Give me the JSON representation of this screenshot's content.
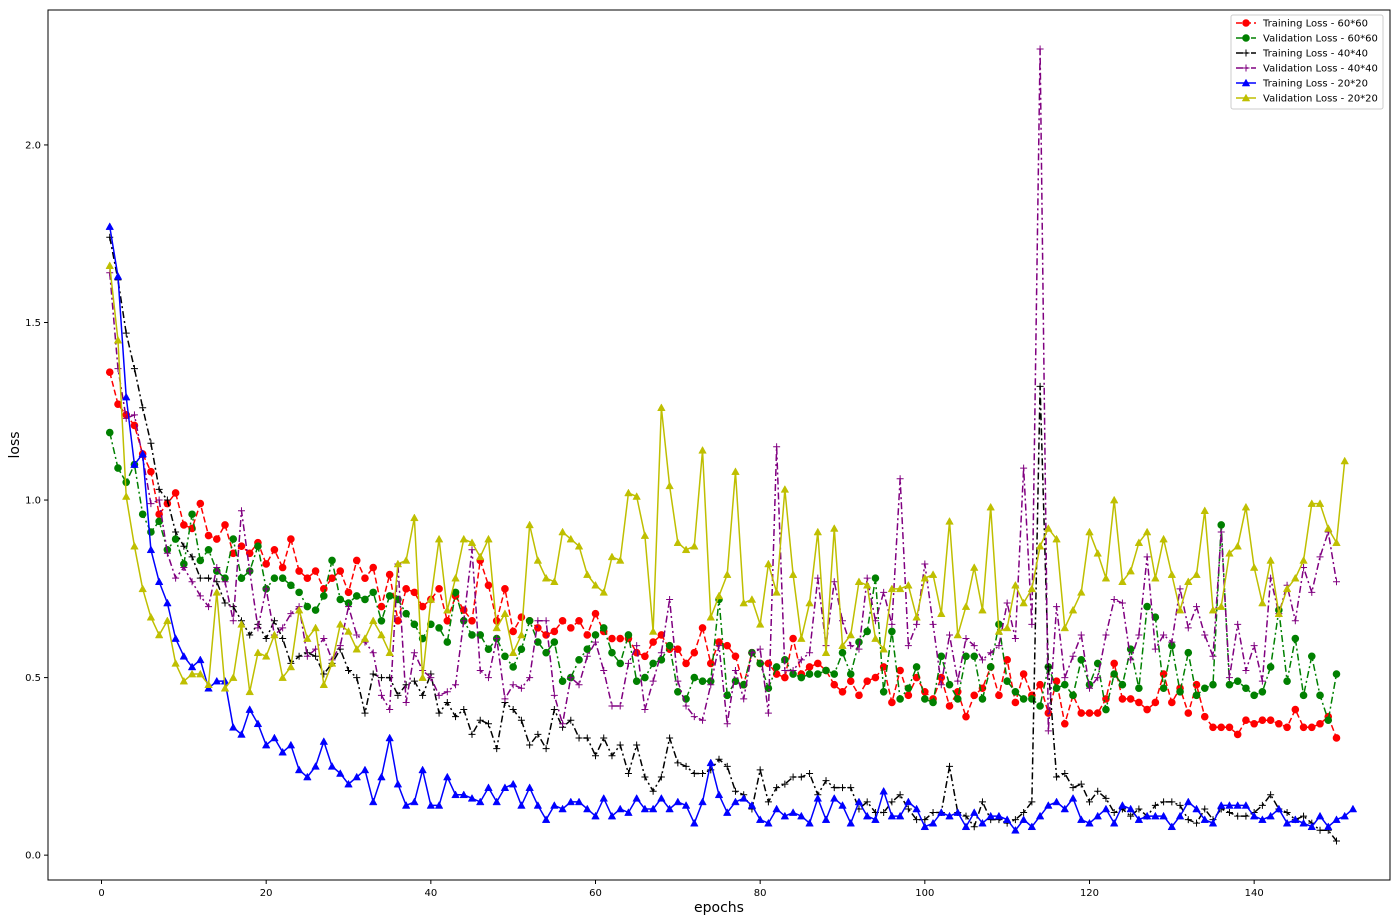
{
  "chart_data": {
    "type": "line",
    "title": "",
    "xlabel": "epochs",
    "ylabel": "loss",
    "xlim": [
      -6.5,
      156.5
    ],
    "ylim": [
      -0.07,
      2.38
    ],
    "x_ticks": [
      0,
      20,
      40,
      60,
      80,
      100,
      120,
      140
    ],
    "y_ticks": [
      0.0,
      0.5,
      1.0,
      1.5,
      2.0
    ],
    "y_tick_labels": [
      "0.0",
      "0.5",
      "1.0",
      "1.5",
      "2.0"
    ],
    "grid": false,
    "legend_position": "top-right",
    "x_start": 1,
    "series": [
      {
        "name": "Training Loss - 60*60",
        "color": "#ff0000",
        "linestyle": "dashed",
        "marker": "circle",
        "values": [
          1.36,
          1.27,
          1.24,
          1.21,
          1.13,
          1.08,
          0.96,
          0.99,
          1.02,
          0.93,
          0.92,
          0.99,
          0.9,
          0.89,
          0.93,
          0.85,
          0.87,
          0.85,
          0.88,
          0.82,
          0.86,
          0.81,
          0.89,
          0.8,
          0.78,
          0.8,
          0.75,
          0.78,
          0.8,
          0.74,
          0.83,
          0.78,
          0.81,
          0.7,
          0.79,
          0.66,
          0.75,
          0.74,
          0.7,
          0.72,
          0.75,
          0.66,
          0.73,
          0.69,
          0.66,
          0.83,
          0.76,
          0.66,
          0.75,
          0.63,
          0.67,
          0.66,
          0.64,
          0.62,
          0.63,
          0.66,
          0.64,
          0.66,
          0.62,
          0.68,
          0.63,
          0.61,
          0.61,
          0.61,
          0.57,
          0.56,
          0.6,
          0.62,
          0.58,
          0.58,
          0.54,
          0.57,
          0.64,
          0.54,
          0.6,
          0.59,
          0.56,
          0.48,
          0.57,
          0.54,
          0.54,
          0.51,
          0.5,
          0.61,
          0.51,
          0.53,
          0.54,
          0.52,
          0.48,
          0.46,
          0.49,
          0.45,
          0.49,
          0.5,
          0.53,
          0.43,
          0.52,
          0.45,
          0.5,
          0.46,
          0.44,
          0.5,
          0.42,
          0.46,
          0.39,
          0.45,
          0.47,
          0.53,
          0.45,
          0.55,
          0.43,
          0.51,
          0.45,
          0.48,
          0.4,
          0.49,
          0.37,
          0.45,
          0.4,
          0.4,
          0.4,
          0.44,
          0.54,
          0.44,
          0.44,
          0.43,
          0.41,
          0.43,
          0.51,
          0.43,
          0.47,
          0.4,
          0.48,
          0.39,
          0.36,
          0.36,
          0.36,
          0.34,
          0.38,
          0.37,
          0.38,
          0.38,
          0.37,
          0.36,
          0.41,
          0.36,
          0.36,
          0.37,
          0.39,
          0.33
        ]
      },
      {
        "name": "Validation Loss - 60*60",
        "color": "#008000",
        "linestyle": "dashdot",
        "marker": "circle",
        "values": [
          1.19,
          1.09,
          1.05,
          1.1,
          0.96,
          0.91,
          0.94,
          0.86,
          0.89,
          0.82,
          0.96,
          0.83,
          0.86,
          0.8,
          0.78,
          0.89,
          0.78,
          0.8,
          0.87,
          0.75,
          0.78,
          0.78,
          0.76,
          0.74,
          0.7,
          0.69,
          0.73,
          0.83,
          0.72,
          0.71,
          0.73,
          0.72,
          0.74,
          0.66,
          0.73,
          0.72,
          0.68,
          0.65,
          0.61,
          0.65,
          0.64,
          0.6,
          0.74,
          0.66,
          0.62,
          0.62,
          0.58,
          0.61,
          0.56,
          0.53,
          0.58,
          0.66,
          0.6,
          0.57,
          0.6,
          0.49,
          0.5,
          0.55,
          0.58,
          0.62,
          0.64,
          0.57,
          0.54,
          0.62,
          0.49,
          0.5,
          0.54,
          0.55,
          0.59,
          0.46,
          0.44,
          0.5,
          0.49,
          0.49,
          0.72,
          0.45,
          0.49,
          0.48,
          0.57,
          0.54,
          0.47,
          0.53,
          0.55,
          0.51,
          0.5,
          0.51,
          0.51,
          0.52,
          0.51,
          0.57,
          0.51,
          0.6,
          0.63,
          0.78,
          0.46,
          0.63,
          0.44,
          0.47,
          0.53,
          0.44,
          0.43,
          0.56,
          0.48,
          0.44,
          0.56,
          0.56,
          0.44,
          0.53,
          0.65,
          0.49,
          0.46,
          0.44,
          0.44,
          0.42,
          0.53,
          0.47,
          0.48,
          0.45,
          0.55,
          0.48,
          0.54,
          0.41,
          0.51,
          0.48,
          0.58,
          0.47,
          0.7,
          0.67,
          0.47,
          0.59,
          0.46,
          0.57,
          0.45,
          0.47,
          0.48,
          0.93,
          0.48,
          0.49,
          0.47,
          0.45,
          0.46,
          0.53,
          0.69,
          0.49,
          0.61,
          0.45,
          0.56,
          0.45,
          0.38,
          0.51
        ]
      },
      {
        "name": "Training Loss - 40*40",
        "color": "#000000",
        "linestyle": "dashdot",
        "marker": "plus",
        "values": [
          1.74,
          1.62,
          1.47,
          1.37,
          1.26,
          1.16,
          1.03,
          1.0,
          0.91,
          0.87,
          0.84,
          0.78,
          0.78,
          0.77,
          0.71,
          0.7,
          0.66,
          0.62,
          0.65,
          0.61,
          0.66,
          0.61,
          0.54,
          0.56,
          0.57,
          0.56,
          0.51,
          0.54,
          0.58,
          0.52,
          0.5,
          0.4,
          0.51,
          0.5,
          0.5,
          0.45,
          0.48,
          0.49,
          0.45,
          0.51,
          0.4,
          0.43,
          0.39,
          0.41,
          0.34,
          0.38,
          0.37,
          0.3,
          0.43,
          0.41,
          0.38,
          0.31,
          0.34,
          0.3,
          0.41,
          0.36,
          0.38,
          0.33,
          0.33,
          0.28,
          0.33,
          0.28,
          0.31,
          0.23,
          0.31,
          0.22,
          0.18,
          0.22,
          0.33,
          0.26,
          0.25,
          0.23,
          0.23,
          0.24,
          0.27,
          0.25,
          0.18,
          0.17,
          0.13,
          0.24,
          0.15,
          0.19,
          0.2,
          0.22,
          0.22,
          0.23,
          0.17,
          0.21,
          0.19,
          0.19,
          0.19,
          0.13,
          0.15,
          0.12,
          0.12,
          0.15,
          0.17,
          0.13,
          0.1,
          0.1,
          0.12,
          0.12,
          0.25,
          0.12,
          0.11,
          0.08,
          0.15,
          0.1,
          0.1,
          0.09,
          0.1,
          0.12,
          0.15,
          1.32,
          0.53,
          0.22,
          0.23,
          0.19,
          0.2,
          0.15,
          0.18,
          0.16,
          0.12,
          0.13,
          0.11,
          0.13,
          0.11,
          0.14,
          0.15,
          0.15,
          0.14,
          0.1,
          0.09,
          0.13,
          0.1,
          0.13,
          0.12,
          0.11,
          0.11,
          0.12,
          0.14,
          0.17,
          0.13,
          0.12,
          0.1,
          0.11,
          0.09,
          0.07,
          0.07,
          0.04
        ]
      },
      {
        "name": "Validation Loss - 40*40",
        "color": "#800080",
        "linestyle": "dashdot",
        "marker": "plus",
        "values": [
          1.64,
          1.37,
          1.23,
          1.24,
          1.12,
          0.99,
          1.0,
          0.85,
          0.78,
          0.81,
          0.77,
          0.73,
          0.7,
          0.81,
          0.77,
          0.66,
          0.97,
          0.8,
          0.64,
          0.75,
          0.62,
          0.64,
          0.68,
          0.7,
          0.56,
          0.58,
          0.61,
          0.55,
          0.59,
          0.7,
          0.62,
          0.6,
          0.57,
          0.45,
          0.41,
          0.82,
          0.43,
          0.57,
          0.52,
          0.5,
          0.45,
          0.46,
          0.48,
          0.66,
          0.86,
          0.52,
          0.5,
          0.61,
          0.44,
          0.48,
          0.47,
          0.5,
          0.66,
          0.66,
          0.45,
          0.37,
          0.5,
          0.48,
          0.56,
          0.6,
          0.52,
          0.42,
          0.42,
          0.54,
          0.59,
          0.41,
          0.49,
          0.57,
          0.72,
          0.49,
          0.42,
          0.39,
          0.38,
          0.48,
          0.59,
          0.37,
          0.52,
          0.44,
          0.57,
          0.58,
          0.4,
          1.15,
          0.52,
          0.52,
          0.55,
          0.57,
          0.78,
          0.59,
          0.77,
          0.66,
          0.59,
          0.58,
          0.78,
          0.66,
          0.74,
          0.65,
          1.06,
          0.59,
          0.65,
          0.82,
          0.65,
          0.48,
          0.62,
          0.49,
          0.61,
          0.59,
          0.55,
          0.57,
          0.59,
          0.71,
          0.61,
          1.09,
          0.65,
          2.27,
          0.35,
          0.7,
          0.5,
          0.56,
          0.62,
          0.47,
          0.5,
          0.62,
          0.72,
          0.71,
          0.55,
          0.62,
          0.84,
          0.58,
          0.62,
          0.6,
          0.75,
          0.64,
          0.7,
          0.62,
          0.56,
          0.91,
          0.5,
          0.65,
          0.52,
          0.59,
          0.49,
          0.78,
          0.68,
          0.76,
          0.66,
          0.81,
          0.74,
          0.84,
          0.91,
          0.77
        ]
      },
      {
        "name": "Training Loss - 20*20",
        "color": "#0000ff",
        "linestyle": "solid",
        "marker": "triangle",
        "values": [
          1.77,
          1.63,
          1.29,
          1.1,
          1.13,
          0.86,
          0.77,
          0.71,
          0.61,
          0.56,
          0.53,
          0.55,
          0.47,
          0.49,
          0.49,
          0.36,
          0.34,
          0.41,
          0.37,
          0.31,
          0.33,
          0.29,
          0.31,
          0.24,
          0.22,
          0.25,
          0.32,
          0.25,
          0.23,
          0.2,
          0.22,
          0.24,
          0.15,
          0.22,
          0.33,
          0.2,
          0.14,
          0.15,
          0.24,
          0.14,
          0.14,
          0.22,
          0.17,
          0.17,
          0.16,
          0.15,
          0.19,
          0.15,
          0.19,
          0.2,
          0.14,
          0.19,
          0.14,
          0.1,
          0.14,
          0.13,
          0.15,
          0.15,
          0.13,
          0.11,
          0.16,
          0.11,
          0.13,
          0.12,
          0.16,
          0.13,
          0.13,
          0.16,
          0.13,
          0.15,
          0.14,
          0.09,
          0.15,
          0.26,
          0.17,
          0.12,
          0.15,
          0.16,
          0.14,
          0.1,
          0.09,
          0.13,
          0.11,
          0.12,
          0.11,
          0.09,
          0.16,
          0.1,
          0.16,
          0.14,
          0.09,
          0.15,
          0.11,
          0.1,
          0.18,
          0.11,
          0.11,
          0.15,
          0.13,
          0.08,
          0.09,
          0.12,
          0.11,
          0.12,
          0.08,
          0.12,
          0.09,
          0.11,
          0.11,
          0.1,
          0.07,
          0.1,
          0.08,
          0.11,
          0.14,
          0.15,
          0.13,
          0.16,
          0.1,
          0.09,
          0.11,
          0.13,
          0.09,
          0.14,
          0.13,
          0.1,
          0.11,
          0.11,
          0.11,
          0.08,
          0.11,
          0.15,
          0.13,
          0.1,
          0.09,
          0.14,
          0.14,
          0.14,
          0.14,
          0.11,
          0.1,
          0.11,
          0.13,
          0.09,
          0.1,
          0.09,
          0.08,
          0.11,
          0.08,
          0.1,
          0.11,
          0.13
        ]
      },
      {
        "name": "Validation Loss - 20*20",
        "color": "#bfbf00",
        "linestyle": "solid",
        "marker": "triangle",
        "values": [
          1.66,
          1.45,
          1.01,
          0.87,
          0.75,
          0.67,
          0.62,
          0.66,
          0.54,
          0.49,
          0.51,
          0.51,
          0.48,
          0.74,
          0.47,
          0.5,
          0.65,
          0.46,
          0.57,
          0.56,
          0.62,
          0.5,
          0.53,
          0.69,
          0.61,
          0.64,
          0.48,
          0.54,
          0.65,
          0.63,
          0.58,
          0.61,
          0.66,
          0.62,
          0.57,
          0.82,
          0.83,
          0.95,
          0.5,
          0.72,
          0.89,
          0.69,
          0.78,
          0.89,
          0.88,
          0.84,
          0.89,
          0.64,
          0.68,
          0.57,
          0.62,
          0.93,
          0.83,
          0.78,
          0.77,
          0.91,
          0.89,
          0.87,
          0.79,
          0.76,
          0.74,
          0.84,
          0.83,
          1.02,
          1.01,
          0.9,
          0.63,
          1.26,
          1.04,
          0.88,
          0.86,
          0.87,
          1.14,
          0.67,
          0.73,
          0.79,
          1.08,
          0.71,
          0.72,
          0.65,
          0.82,
          0.74,
          1.03,
          0.79,
          0.61,
          0.71,
          0.91,
          0.57,
          0.92,
          0.59,
          0.62,
          0.77,
          0.76,
          0.61,
          0.58,
          0.75,
          0.75,
          0.76,
          0.67,
          0.78,
          0.79,
          0.68,
          0.94,
          0.62,
          0.7,
          0.81,
          0.69,
          0.98,
          0.63,
          0.64,
          0.76,
          0.71,
          0.75,
          0.87,
          0.92,
          0.89,
          0.64,
          0.69,
          0.74,
          0.91,
          0.85,
          0.78,
          1.0,
          0.77,
          0.8,
          0.88,
          0.91,
          0.78,
          0.89,
          0.79,
          0.69,
          0.77,
          0.79,
          0.97,
          0.69,
          0.7,
          0.85,
          0.87,
          0.98,
          0.81,
          0.71,
          0.83,
          0.68,
          0.75,
          0.78,
          0.83,
          0.99,
          0.99,
          0.92,
          0.88,
          1.11
        ]
      }
    ]
  }
}
